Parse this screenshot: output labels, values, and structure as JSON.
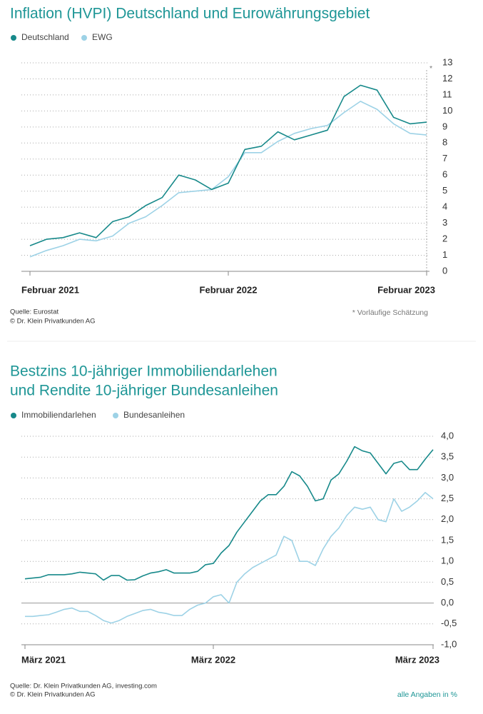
{
  "chart_data": [
    {
      "type": "line",
      "title": "Inflation (HVPI) Deutschland und Eurowährungsgebiet",
      "categories": [
        "Februar 2021",
        null,
        null,
        null,
        null,
        null,
        null,
        null,
        null,
        null,
        null,
        null,
        "Februar 2022",
        null,
        null,
        null,
        null,
        null,
        null,
        null,
        null,
        null,
        null,
        null,
        "Februar 2023"
      ],
      "series": [
        {
          "name": "Deutschland",
          "color": "#17898a",
          "values": [
            1.6,
            2.0,
            2.1,
            2.4,
            2.1,
            3.1,
            3.4,
            4.1,
            4.6,
            6.0,
            5.7,
            5.1,
            5.5,
            7.6,
            7.8,
            8.7,
            8.2,
            8.5,
            8.8,
            10.9,
            11.6,
            11.3,
            9.6,
            9.2,
            9.3
          ]
        },
        {
          "name": "EWG",
          "color": "#9dd2e6",
          "values": [
            0.9,
            1.3,
            1.6,
            2.0,
            1.9,
            2.2,
            3.0,
            3.4,
            4.1,
            4.9,
            5.0,
            5.1,
            5.9,
            7.4,
            7.4,
            8.1,
            8.6,
            8.9,
            9.1,
            9.9,
            10.6,
            10.1,
            9.2,
            8.6,
            8.5
          ]
        }
      ],
      "ylim": [
        0,
        13
      ],
      "yticks": [
        0,
        1,
        2,
        3,
        4,
        5,
        6,
        7,
        8,
        9,
        10,
        11,
        12,
        13
      ],
      "grid": true,
      "estimate_marker": "*",
      "source": [
        "Quelle: Eurostat",
        "© Dr. Klein Privatkunden AG"
      ],
      "note": "* Vorläufige Schätzung"
    },
    {
      "type": "line",
      "title": [
        "Bestzins 10-jähriger Immobiliendarlehen",
        "und Rendite 10-jähriger Bundesanleihen"
      ],
      "categories": [
        "März 2021",
        null,
        null,
        null,
        null,
        null,
        null,
        null,
        null,
        null,
        null,
        null,
        null,
        null,
        null,
        null,
        null,
        null,
        null,
        null,
        null,
        null,
        null,
        null,
        "März 2022",
        null,
        null,
        null,
        null,
        null,
        null,
        null,
        null,
        null,
        null,
        null,
        null,
        null,
        null,
        null,
        null,
        null,
        null,
        null,
        null,
        null,
        null,
        null,
        null,
        null,
        null,
        null,
        "März 2023"
      ],
      "series": [
        {
          "name": "Immobiliendarlehen",
          "color": "#17898a",
          "values": [
            0.58,
            0.6,
            0.62,
            0.68,
            0.68,
            0.68,
            0.7,
            0.74,
            0.72,
            0.7,
            0.55,
            0.66,
            0.66,
            0.55,
            0.56,
            0.65,
            0.72,
            0.75,
            0.8,
            0.72,
            0.72,
            0.72,
            0.76,
            0.92,
            0.95,
            1.2,
            1.38,
            1.7,
            1.95,
            2.2,
            2.45,
            2.6,
            2.6,
            2.8,
            3.15,
            3.05,
            2.8,
            2.45,
            2.5,
            2.95,
            3.1,
            3.4,
            3.75,
            3.65,
            3.6,
            3.35,
            3.1,
            3.35,
            3.4,
            3.2,
            3.2,
            3.45,
            3.68
          ]
        },
        {
          "name": "Bundesanleihen",
          "color": "#9dd2e6",
          "values": [
            -0.32,
            -0.32,
            -0.3,
            -0.28,
            -0.22,
            -0.15,
            -0.12,
            -0.2,
            -0.2,
            -0.3,
            -0.42,
            -0.48,
            -0.42,
            -0.32,
            -0.25,
            -0.18,
            -0.15,
            -0.22,
            -0.25,
            -0.3,
            -0.3,
            -0.15,
            -0.05,
            0.0,
            0.15,
            0.2,
            0.0,
            0.5,
            0.7,
            0.85,
            0.95,
            1.05,
            1.15,
            1.6,
            1.5,
            1.0,
            1.0,
            0.9,
            1.3,
            1.6,
            1.8,
            2.1,
            2.3,
            2.25,
            2.3,
            2.0,
            1.95,
            2.5,
            2.2,
            2.3,
            2.45,
            2.65,
            2.5
          ]
        }
      ],
      "ylim": [
        -1,
        4
      ],
      "yticks": [
        {
          "value": 4,
          "label": "4,0"
        },
        {
          "value": 3.5,
          "label": "3,5"
        },
        {
          "value": 3,
          "label": "3,0"
        },
        {
          "value": 2.5,
          "label": "2,5"
        },
        {
          "value": 2,
          "label": "2,0"
        },
        {
          "value": 1.5,
          "label": "1,5"
        },
        {
          "value": 1,
          "label": "1,0"
        },
        {
          "value": 0.5,
          "label": "0,5"
        },
        {
          "value": 0,
          "label": "0,0"
        },
        {
          "value": -0.5,
          "label": "-0,5"
        },
        {
          "value": -1,
          "label": "-1,0"
        }
      ],
      "grid": true,
      "source": [
        "Quelle: Dr. Klein Privatkunden AG, investing.com",
        "© Dr. Klein Privatkunden AG"
      ],
      "note": "alle Angaben in %"
    }
  ]
}
